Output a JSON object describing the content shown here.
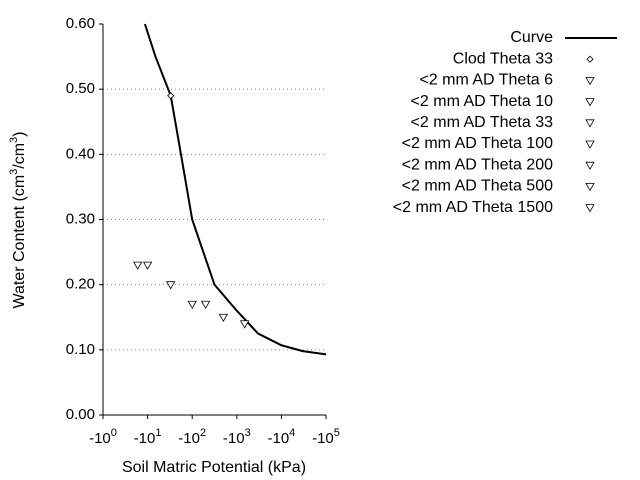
{
  "chart_data": {
    "type": "scatter",
    "x_label": "Soil Matric Potential (kPa)",
    "y_label_parts": [
      {
        "text": "Water Content (cm"
      },
      {
        "sup": "3"
      },
      {
        "text": "/cm"
      },
      {
        "sup": "3"
      },
      {
        "text": ")"
      }
    ],
    "xscale": "log",
    "xlim": [
      1,
      100000
    ],
    "xticks": [
      {
        "value": 1,
        "label": "-10",
        "exponent": "0"
      },
      {
        "value": 10,
        "label": "-10",
        "exponent": "1"
      },
      {
        "value": 100,
        "label": "-10",
        "exponent": "2"
      },
      {
        "value": 1000,
        "label": "-10",
        "exponent": "3"
      },
      {
        "value": 10000,
        "label": "-10",
        "exponent": "4"
      },
      {
        "value": 100000,
        "label": "-10",
        "exponent": "5"
      }
    ],
    "ylim": [
      0,
      0.6
    ],
    "yticks": [
      {
        "value": 0,
        "label": "0.00"
      },
      {
        "value": 0.1,
        "label": "0.10"
      },
      {
        "value": 0.2,
        "label": "0.20"
      },
      {
        "value": 0.3,
        "label": "0.30"
      },
      {
        "value": 0.4,
        "label": "0.40"
      },
      {
        "value": 0.5,
        "label": "0.50"
      },
      {
        "value": 0.6,
        "label": "0.60"
      }
    ],
    "grid": true,
    "series": [
      {
        "name": "Curve",
        "marker": "line",
        "color": "#000000",
        "x": [
          8.7,
          15,
          33,
          56,
          100,
          316,
          1000,
          3000,
          10000,
          30000,
          100000
        ],
        "values": [
          0.6,
          0.55,
          0.49,
          0.4,
          0.3,
          0.2,
          0.16,
          0.125,
          0.107,
          0.098,
          0.093
        ]
      },
      {
        "name": "Clod Theta 33",
        "marker": "diamond",
        "color": "#000000",
        "x": [
          33
        ],
        "values": [
          0.49
        ]
      },
      {
        "name": "<2 mm AD Theta 6",
        "marker": "triangle",
        "color": "#000000",
        "x": [
          6
        ],
        "values": [
          0.23
        ]
      },
      {
        "name": "<2 mm AD Theta 10",
        "marker": "triangle",
        "color": "#000000",
        "x": [
          10
        ],
        "values": [
          0.23
        ]
      },
      {
        "name": "<2 mm AD Theta 33",
        "marker": "triangle",
        "color": "#000000",
        "x": [
          33
        ],
        "values": [
          0.2
        ]
      },
      {
        "name": "<2 mm AD Theta 100",
        "marker": "triangle",
        "color": "#000000",
        "x": [
          100
        ],
        "values": [
          0.17
        ]
      },
      {
        "name": "<2 mm AD Theta 200",
        "marker": "triangle",
        "color": "#000000",
        "x": [
          200
        ],
        "values": [
          0.17
        ]
      },
      {
        "name": "<2 mm AD Theta 500",
        "marker": "triangle",
        "color": "#000000",
        "x": [
          500
        ],
        "values": [
          0.15
        ]
      },
      {
        "name": "<2 mm AD Theta 1500",
        "marker": "triangle",
        "color": "#000000",
        "x": [
          1500
        ],
        "values": [
          0.14
        ]
      }
    ]
  }
}
